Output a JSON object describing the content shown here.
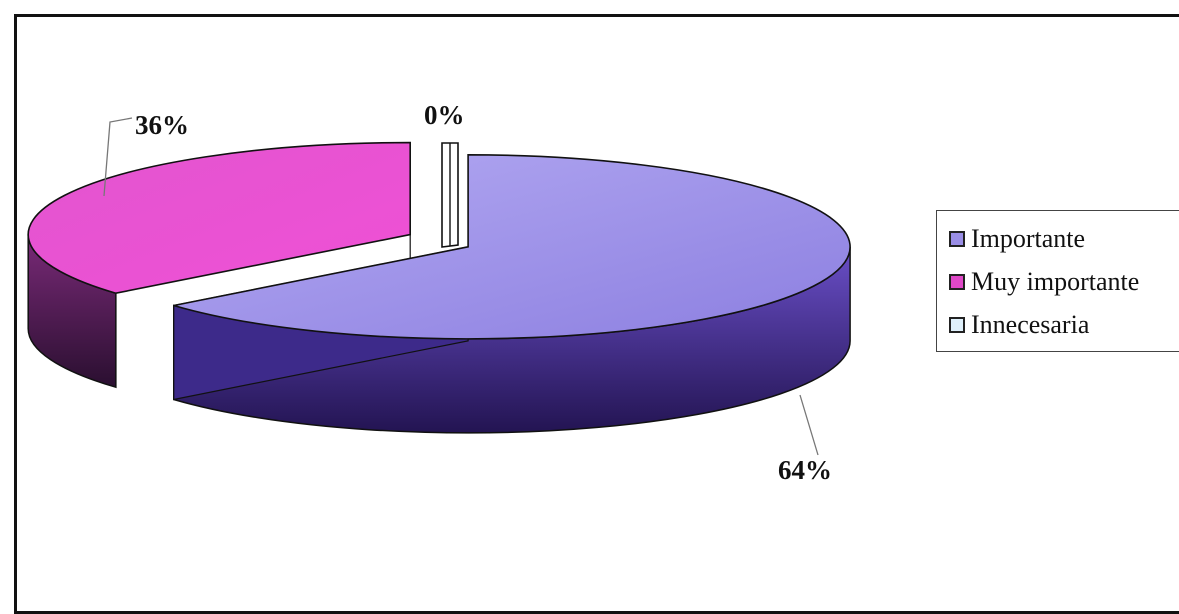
{
  "chart_data": {
    "type": "pie",
    "style": "3d-exploded",
    "title": "",
    "slices": [
      {
        "label": "Importante",
        "value": 64,
        "value_label": "64%",
        "color": "#9a8ee6"
      },
      {
        "label": "Muy importante",
        "value": 36,
        "value_label": "36%",
        "color": "#e048c8"
      },
      {
        "label": "Innecesaria",
        "value": 0,
        "value_label": "0%",
        "color": "#dff0fb"
      }
    ],
    "legend": {
      "position": "right"
    }
  }
}
